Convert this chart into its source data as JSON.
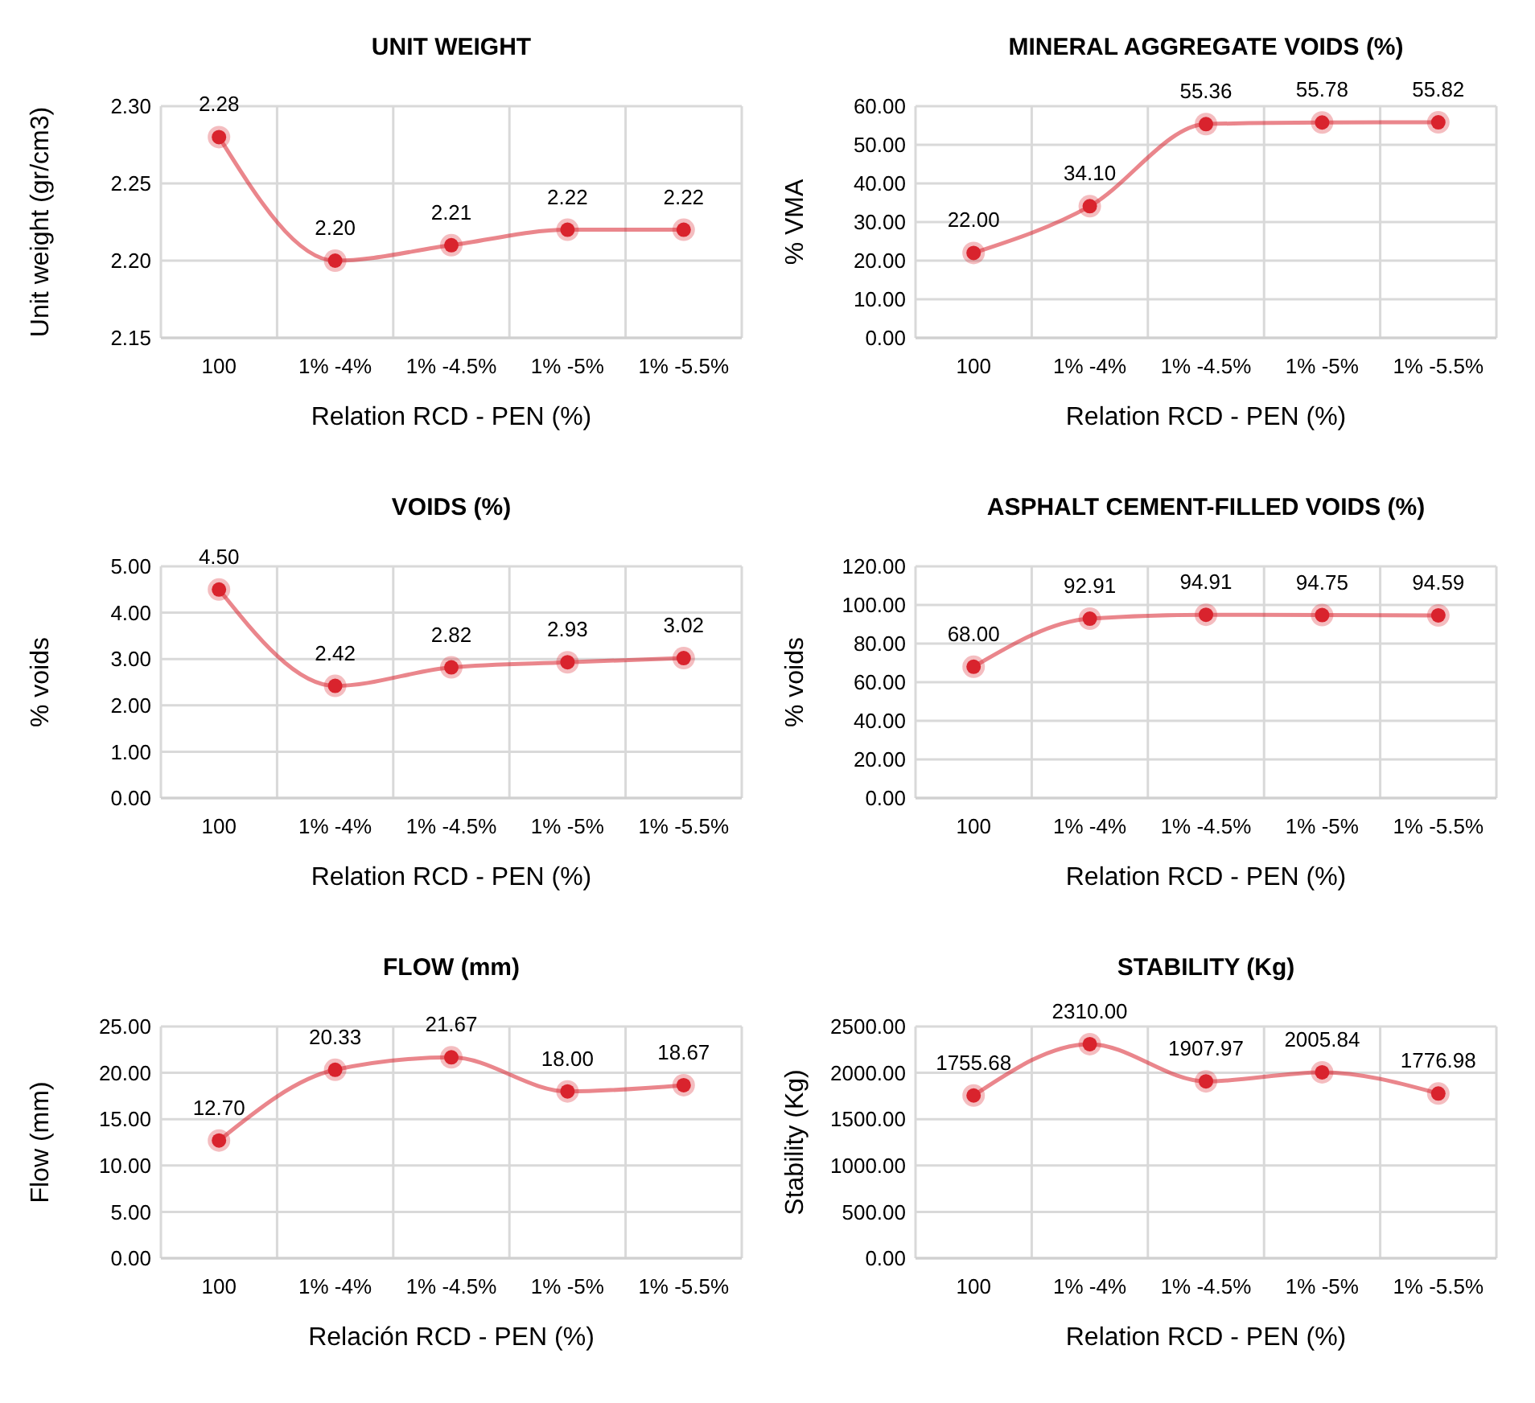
{
  "chart_data": [
    {
      "type": "line",
      "title": "UNIT WEIGHT",
      "xlabel": "Relation RCD - PEN (%)",
      "ylabel": "Unit weight (gr/cm3)",
      "categories": [
        "100",
        "1% -4%",
        "1% -4.5%",
        "1% -5%",
        "1% -5.5%"
      ],
      "series": [
        {
          "color": "#d9232d",
          "values": [
            2.28,
            2.2,
            2.21,
            2.22,
            2.22
          ],
          "value_labels": [
            "2.28",
            "2.20",
            "2.21",
            "2.22",
            "2.22"
          ]
        }
      ],
      "ylim": [
        2.15,
        2.3
      ],
      "yticks": [
        {
          "value": 2.15,
          "label": "2.15"
        },
        {
          "value": 2.2,
          "label": "2.20"
        },
        {
          "value": 2.25,
          "label": "2.25"
        },
        {
          "value": 2.3,
          "label": "2.30"
        }
      ],
      "grid": true,
      "marker": "circle"
    },
    {
      "type": "line",
      "title": "MINERAL AGGREGATE VOIDS (%)",
      "xlabel": "Relation RCD - PEN (%)",
      "ylabel": "% VMA",
      "categories": [
        "100",
        "1% -4%",
        "1% -4.5%",
        "1% -5%",
        "1% -5.5%"
      ],
      "series": [
        {
          "color": "#d9232d",
          "values": [
            22,
            34.1,
            55.36,
            55.78,
            55.82
          ],
          "value_labels": [
            "22.00",
            "34.10",
            "55.36",
            "55.78",
            "55.82"
          ]
        }
      ],
      "ylim": [
        0,
        60
      ],
      "yticks": [
        {
          "value": 0,
          "label": "0.00"
        },
        {
          "value": 10,
          "label": "10.00"
        },
        {
          "value": 20,
          "label": "20.00"
        },
        {
          "value": 30,
          "label": "30.00"
        },
        {
          "value": 40,
          "label": "40.00"
        },
        {
          "value": 50,
          "label": "50.00"
        },
        {
          "value": 60,
          "label": "60.00"
        }
      ],
      "grid": true,
      "marker": "circle"
    },
    {
      "type": "line",
      "title": "VOIDS (%)",
      "xlabel": "Relation RCD - PEN (%)",
      "ylabel": "% voids",
      "categories": [
        "100",
        "1% -4%",
        "1% -4.5%",
        "1% -5%",
        "1% -5.5%"
      ],
      "series": [
        {
          "color": "#d9232d",
          "values": [
            4.5,
            2.42,
            2.82,
            2.93,
            3.02
          ],
          "value_labels": [
            "4.50",
            "2.42",
            "2.82",
            "2.93",
            "3.02"
          ]
        }
      ],
      "ylim": [
        0,
        5
      ],
      "yticks": [
        {
          "value": 0,
          "label": "0.00"
        },
        {
          "value": 1,
          "label": "1.00"
        },
        {
          "value": 2,
          "label": "2.00"
        },
        {
          "value": 3,
          "label": "3.00"
        },
        {
          "value": 4,
          "label": "4.00"
        },
        {
          "value": 5,
          "label": "5.00"
        }
      ],
      "grid": true,
      "marker": "circle"
    },
    {
      "type": "line",
      "title": "ASPHALT CEMENT-FILLED VOIDS (%)",
      "xlabel": "Relation RCD - PEN (%)",
      "ylabel": "% voids",
      "categories": [
        "100",
        "1% -4%",
        "1% -4.5%",
        "1% -5%",
        "1% -5.5%"
      ],
      "series": [
        {
          "color": "#d9232d",
          "values": [
            68,
            92.91,
            94.91,
            94.75,
            94.59
          ],
          "value_labels": [
            "68.00",
            "92.91",
            "94.91",
            "94.75",
            "94.59"
          ]
        }
      ],
      "ylim": [
        0,
        120
      ],
      "yticks": [
        {
          "value": 0,
          "label": "0.00"
        },
        {
          "value": 20,
          "label": "20.00"
        },
        {
          "value": 40,
          "label": "40.00"
        },
        {
          "value": 60,
          "label": "60.00"
        },
        {
          "value": 80,
          "label": "80.00"
        },
        {
          "value": 100,
          "label": "100.00"
        },
        {
          "value": 120,
          "label": "120.00"
        }
      ],
      "grid": true,
      "marker": "circle"
    },
    {
      "type": "line",
      "title": "FLOW (mm)",
      "xlabel": "Relación RCD - PEN (%)",
      "ylabel": "Flow (mm)",
      "categories": [
        "100",
        "1% -4%",
        "1% -4.5%",
        "1% -5%",
        "1% -5.5%"
      ],
      "series": [
        {
          "color": "#d9232d",
          "values": [
            12.7,
            20.33,
            21.67,
            18,
            18.67
          ],
          "value_labels": [
            "12.70",
            "20.33",
            "21.67",
            "18.00",
            "18.67"
          ]
        }
      ],
      "ylim": [
        0,
        25
      ],
      "yticks": [
        {
          "value": 0,
          "label": "0.00"
        },
        {
          "value": 5,
          "label": "5.00"
        },
        {
          "value": 10,
          "label": "10.00"
        },
        {
          "value": 15,
          "label": "15.00"
        },
        {
          "value": 20,
          "label": "20.00"
        },
        {
          "value": 25,
          "label": "25.00"
        }
      ],
      "grid": true,
      "marker": "circle"
    },
    {
      "type": "line",
      "title": "STABILITY (Kg)",
      "xlabel": "Relation RCD - PEN  (%)",
      "ylabel": "Stability  (Kg)",
      "categories": [
        "100",
        "1% -4%",
        "1% -4.5%",
        "1% -5%",
        "1% -5.5%"
      ],
      "series": [
        {
          "color": "#d9232d",
          "values": [
            1755.68,
            2310,
            1907.97,
            2005.84,
            1776.98
          ],
          "value_labels": [
            "1755.68",
            "2310.00",
            "1907.97",
            "2005.84",
            "1776.98"
          ]
        }
      ],
      "ylim": [
        0,
        2500
      ],
      "yticks": [
        {
          "value": 0,
          "label": "0.00"
        },
        {
          "value": 500,
          "label": "500.00"
        },
        {
          "value": 1000,
          "label": "1000.00"
        },
        {
          "value": 1500,
          "label": "1500.00"
        },
        {
          "value": 2000,
          "label": "2000.00"
        },
        {
          "value": 2500,
          "label": "2500.00"
        }
      ],
      "grid": true,
      "marker": "circle"
    }
  ]
}
